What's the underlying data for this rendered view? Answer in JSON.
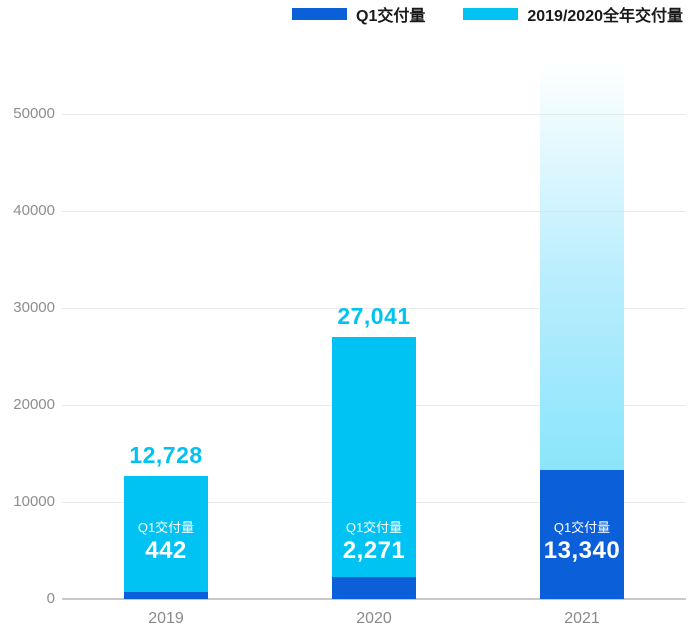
{
  "chart_data": {
    "type": "bar",
    "stacked": true,
    "title": "",
    "xlabel": "",
    "ylabel": "",
    "categories": [
      "2019",
      "2020",
      "2021"
    ],
    "series": [
      {
        "name": "Q1交付量",
        "role": "q1",
        "color": "#0b5fd9",
        "values": [
          442,
          2271,
          13340
        ],
        "labels": [
          "442",
          "2,271",
          "13,340"
        ]
      },
      {
        "name": "2019/2020全年交付量",
        "role": "annual_total",
        "color": "#00c2f3",
        "values": [
          12728,
          27041,
          null
        ],
        "labels": [
          "12,728",
          "27,041",
          ""
        ]
      }
    ],
    "annual_total_is_bar_total": true,
    "unknown_annual_faded_top_value": 56500,
    "inner_label_title": "Q1交付量",
    "yticks": [
      0,
      10000,
      20000,
      30000,
      40000,
      50000
    ],
    "ytick_labels": [
      "0",
      "10000",
      "20000",
      "30000",
      "40000",
      "50000"
    ],
    "ylim": [
      0,
      57000
    ],
    "grid": true,
    "legend_position": "top",
    "colors": {
      "q1_bar": "#0b5fd9",
      "annual_bar": "#00c2f3",
      "annual_faded_bottom": "#8ae5fb",
      "total_value_text": "#00c2f3",
      "inner_text": "#ffffff",
      "gridline": "#eaeaea",
      "axis_line": "#c9c9c9",
      "tick_text": "#8e8e8e",
      "legend_text": "#1a1a1a"
    }
  },
  "legend": {
    "items": [
      {
        "label": "Q1交付量",
        "color": "#0b5fd9"
      },
      {
        "label": "2019/2020全年交付量",
        "color": "#00c2f3"
      }
    ]
  }
}
